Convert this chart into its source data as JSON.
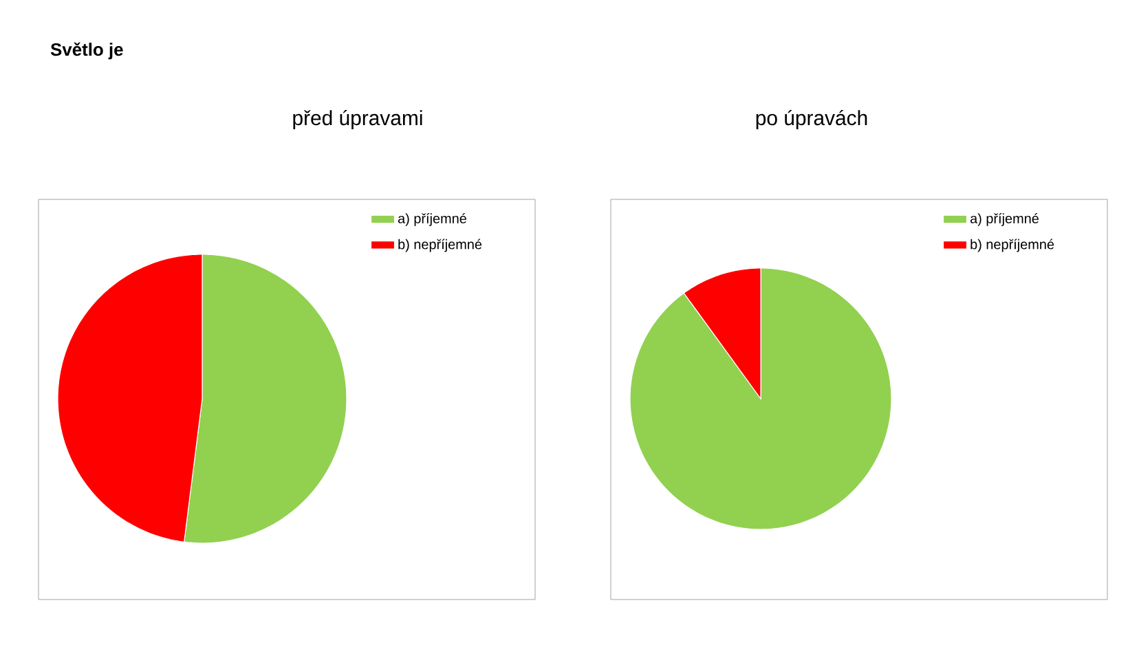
{
  "chart_data": [
    {
      "type": "pie",
      "title": "Světlo je",
      "subtitle": "před úpravami",
      "categories": [
        "a) příjemné",
        "b) nepříjemné"
      ],
      "values": [
        52,
        48
      ],
      "colors": [
        "#92d050",
        "#ff0000"
      ],
      "legend": "top right"
    },
    {
      "type": "pie",
      "subtitle": "po úpravách",
      "categories": [
        "a) příjemné",
        "b) nepříjemné"
      ],
      "values": [
        90,
        10
      ],
      "colors": [
        "#92d050",
        "#ff0000"
      ],
      "legend": "top right"
    }
  ]
}
